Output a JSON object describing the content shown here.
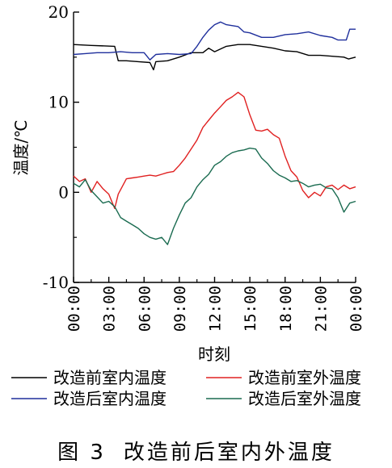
{
  "chart_data": {
    "type": "line",
    "ylabel": "温度/℃",
    "xlabel": "时刻",
    "ylim": [
      -10,
      20
    ],
    "yticks": [
      "20",
      "10",
      "0",
      "-10"
    ],
    "x_tick_labels": [
      "00:00",
      "03:00",
      "06:00",
      "09:00",
      "12:00",
      "15:00",
      "18:00",
      "21:00",
      "00:00"
    ],
    "x_unit": "hours since 00:00",
    "xlim": [
      0,
      24
    ],
    "legend_position": "bottom",
    "series": [
      {
        "name": "改造前室内温度",
        "color": "#000000",
        "points": [
          [
            0,
            16.4
          ],
          [
            1.5,
            16.3
          ],
          [
            3.5,
            16.2
          ],
          [
            3.8,
            14.6
          ],
          [
            4.5,
            14.6
          ],
          [
            5.5,
            14.5
          ],
          [
            6.5,
            14.4
          ],
          [
            6.8,
            13.6
          ],
          [
            7.0,
            14.5
          ],
          [
            8.0,
            14.6
          ],
          [
            9.0,
            15.0
          ],
          [
            10.0,
            15.5
          ],
          [
            11.0,
            15.5
          ],
          [
            11.5,
            16.0
          ],
          [
            12.0,
            15.6
          ],
          [
            13.0,
            16.2
          ],
          [
            14.0,
            16.4
          ],
          [
            15.0,
            16.4
          ],
          [
            16.0,
            16.2
          ],
          [
            17.0,
            16.0
          ],
          [
            18.0,
            15.7
          ],
          [
            19.0,
            15.6
          ],
          [
            20.0,
            15.2
          ],
          [
            21.0,
            15.2
          ],
          [
            22.0,
            15.1
          ],
          [
            23.0,
            15.0
          ],
          [
            23.4,
            14.8
          ],
          [
            24.0,
            15.0
          ]
        ]
      },
      {
        "name": "改造后室内温度",
        "color": "#1f2f9c",
        "points": [
          [
            0,
            15.3
          ],
          [
            1.0,
            15.4
          ],
          [
            2.0,
            15.5
          ],
          [
            3.0,
            15.5
          ],
          [
            4.0,
            15.6
          ],
          [
            5.0,
            15.5
          ],
          [
            6.0,
            15.5
          ],
          [
            6.5,
            14.7
          ],
          [
            7.0,
            15.3
          ],
          [
            8.0,
            15.4
          ],
          [
            9.0,
            15.3
          ],
          [
            10.0,
            15.4
          ],
          [
            10.5,
            16.2
          ],
          [
            11.0,
            17.2
          ],
          [
            11.5,
            18.0
          ],
          [
            12.0,
            18.6
          ],
          [
            12.5,
            18.9
          ],
          [
            13.0,
            18.6
          ],
          [
            14.0,
            18.4
          ],
          [
            14.5,
            17.8
          ],
          [
            15.0,
            17.7
          ],
          [
            16.0,
            17.2
          ],
          [
            17.0,
            17.2
          ],
          [
            18.0,
            17.5
          ],
          [
            19.0,
            17.6
          ],
          [
            20.0,
            17.8
          ],
          [
            21.0,
            17.4
          ],
          [
            22.0,
            17.2
          ],
          [
            22.5,
            16.9
          ],
          [
            23.2,
            16.9
          ],
          [
            23.5,
            18.1
          ],
          [
            24.0,
            18.1
          ]
        ]
      },
      {
        "name": "改造前室外温度",
        "color": "#e02020",
        "points": [
          [
            0,
            1.8
          ],
          [
            0.5,
            1.2
          ],
          [
            1.0,
            1.5
          ],
          [
            1.5,
            0.0
          ],
          [
            2.0,
            1.2
          ],
          [
            2.5,
            0.4
          ],
          [
            3.0,
            -0.2
          ],
          [
            3.5,
            -1.8
          ],
          [
            3.8,
            -0.2
          ],
          [
            4.5,
            1.5
          ],
          [
            5.0,
            1.6
          ],
          [
            5.5,
            1.7
          ],
          [
            6.0,
            1.8
          ],
          [
            6.5,
            1.9
          ],
          [
            7.0,
            1.8
          ],
          [
            7.5,
            2.0
          ],
          [
            8.0,
            2.2
          ],
          [
            8.5,
            2.3
          ],
          [
            9.0,
            3.0
          ],
          [
            9.5,
            3.8
          ],
          [
            10.0,
            4.8
          ],
          [
            10.5,
            5.8
          ],
          [
            11.0,
            7.2
          ],
          [
            11.5,
            8.0
          ],
          [
            12.0,
            8.8
          ],
          [
            12.5,
            9.5
          ],
          [
            13.0,
            10.2
          ],
          [
            13.5,
            10.6
          ],
          [
            14.0,
            11.1
          ],
          [
            14.5,
            10.6
          ],
          [
            15.0,
            8.6
          ],
          [
            15.5,
            6.9
          ],
          [
            16.0,
            6.8
          ],
          [
            16.5,
            7.0
          ],
          [
            17.0,
            6.4
          ],
          [
            17.5,
            6.0
          ],
          [
            18.0,
            4.0
          ],
          [
            18.5,
            2.4
          ],
          [
            19.0,
            1.7
          ],
          [
            19.5,
            0.2
          ],
          [
            20.0,
            -0.6
          ],
          [
            20.5,
            0.0
          ],
          [
            21.0,
            -0.4
          ],
          [
            21.5,
            0.6
          ],
          [
            22.0,
            0.8
          ],
          [
            22.5,
            0.3
          ],
          [
            23.0,
            0.8
          ],
          [
            23.5,
            0.4
          ],
          [
            24.0,
            0.6
          ]
        ]
      },
      {
        "name": "改造后室外温度",
        "color": "#1a6b50",
        "points": [
          [
            0,
            1.0
          ],
          [
            0.5,
            0.6
          ],
          [
            1.0,
            1.4
          ],
          [
            1.5,
            0.2
          ],
          [
            2.0,
            -0.5
          ],
          [
            2.5,
            -1.2
          ],
          [
            3.0,
            -1.0
          ],
          [
            3.5,
            -1.6
          ],
          [
            4.0,
            -2.8
          ],
          [
            4.5,
            -3.2
          ],
          [
            5.0,
            -3.6
          ],
          [
            5.5,
            -4.0
          ],
          [
            6.0,
            -4.6
          ],
          [
            6.5,
            -5.0
          ],
          [
            7.0,
            -5.2
          ],
          [
            7.5,
            -5.0
          ],
          [
            8.0,
            -5.8
          ],
          [
            8.5,
            -4.0
          ],
          [
            9.0,
            -2.5
          ],
          [
            9.5,
            -1.2
          ],
          [
            10.0,
            -0.6
          ],
          [
            10.5,
            0.6
          ],
          [
            11.0,
            1.4
          ],
          [
            11.5,
            2.0
          ],
          [
            12.0,
            3.0
          ],
          [
            12.5,
            3.4
          ],
          [
            13.0,
            4.0
          ],
          [
            13.5,
            4.4
          ],
          [
            14.0,
            4.6
          ],
          [
            14.5,
            4.7
          ],
          [
            15.0,
            4.9
          ],
          [
            15.5,
            4.8
          ],
          [
            16.0,
            3.8
          ],
          [
            16.5,
            3.2
          ],
          [
            17.0,
            2.4
          ],
          [
            17.5,
            1.9
          ],
          [
            18.0,
            1.6
          ],
          [
            18.5,
            1.2
          ],
          [
            19.0,
            1.3
          ],
          [
            19.5,
            1.0
          ],
          [
            20.0,
            0.6
          ],
          [
            20.5,
            0.8
          ],
          [
            21.0,
            0.9
          ],
          [
            21.5,
            0.5
          ],
          [
            22.0,
            0.4
          ],
          [
            22.5,
            -0.6
          ],
          [
            23.0,
            -2.2
          ],
          [
            23.5,
            -1.2
          ],
          [
            24.0,
            -1.0
          ]
        ]
      }
    ]
  },
  "caption": {
    "figure": "图 3",
    "text": "改造前后室内外温度"
  }
}
